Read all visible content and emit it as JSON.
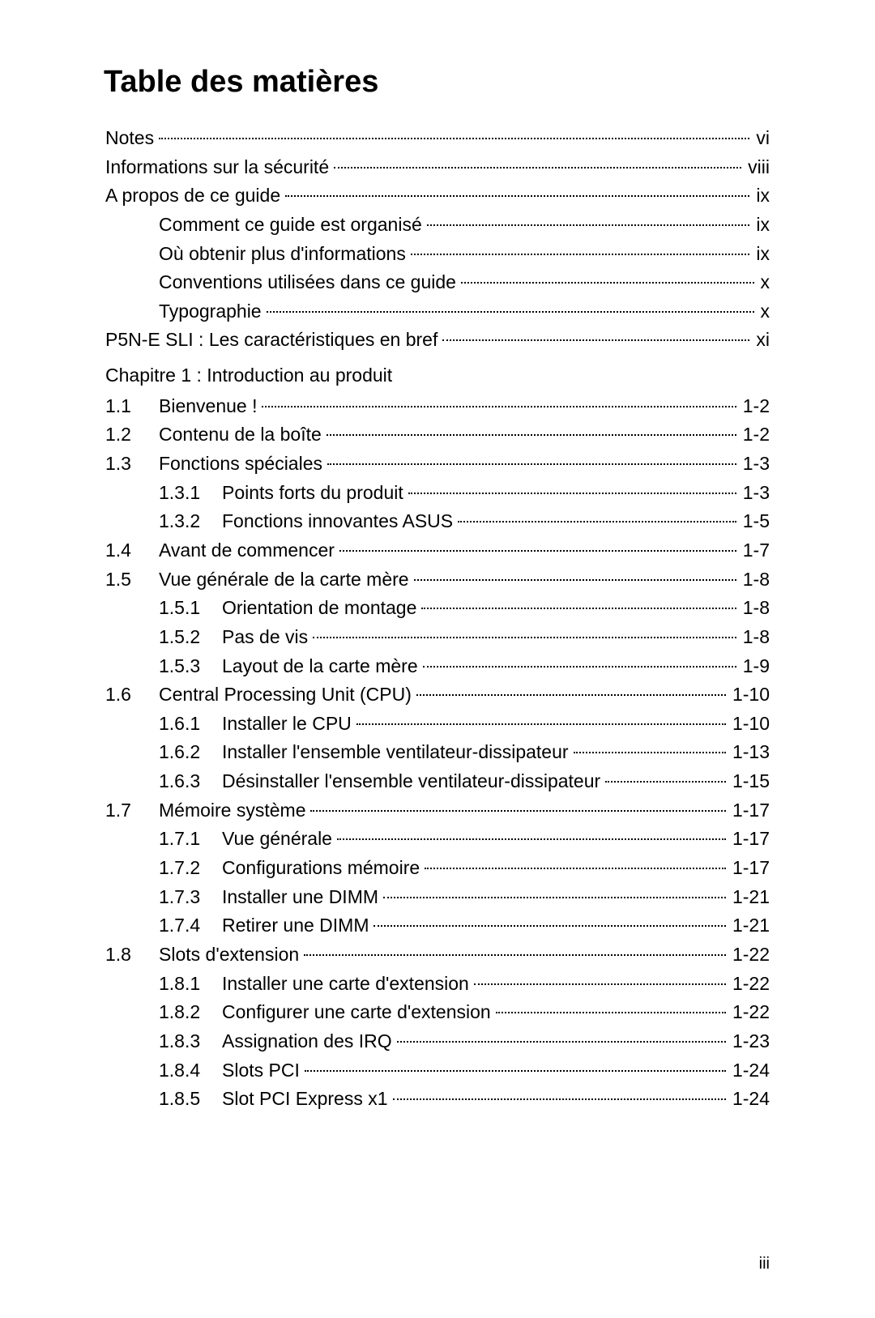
{
  "title": "Table des matières",
  "page_footer": "iii",
  "colors": {
    "text": "#000000",
    "background": "#ffffff",
    "leader": "#000000"
  },
  "typography": {
    "title_fontsize_pt": 28,
    "body_fontsize_pt": 17,
    "title_weight": "bold",
    "body_weight": "normal"
  },
  "front_matter": [
    {
      "label": "Notes",
      "page": "vi"
    },
    {
      "label": "Informations sur la sécurité",
      "page": "viii"
    },
    {
      "label": "A propos de ce guide",
      "page": "ix"
    }
  ],
  "front_sub": [
    {
      "label": "Comment ce guide est organisé",
      "page": "ix"
    },
    {
      "label": "Où obtenir plus d'informations",
      "page": "ix"
    },
    {
      "label": "Conventions utilisées dans ce guide",
      "page": "x"
    },
    {
      "label": "Typographie",
      "page": "x"
    }
  ],
  "front_tail": [
    {
      "label": "P5N-E SLI : Les caractéristiques en bref",
      "page": "xi"
    }
  ],
  "chapter": {
    "heading": "Chapitre 1 : Introduction au produit"
  },
  "sections": [
    {
      "num": "1.1",
      "label": "Bienvenue !",
      "page": "1-2"
    },
    {
      "num": "1.2",
      "label": "Contenu de la boîte",
      "page": "1-2"
    },
    {
      "num": "1.3",
      "label": "Fonctions spéciales",
      "page": "1-3",
      "subs": [
        {
          "sub": "1.3.1",
          "label": "Points forts du produit",
          "page": "1-3"
        },
        {
          "sub": "1.3.2",
          "label": "Fonctions innovantes ASUS",
          "page": "1-5"
        }
      ]
    },
    {
      "num": "1.4",
      "label": "Avant de commencer",
      "page": "1-7"
    },
    {
      "num": "1.5",
      "label": "Vue générale de la carte mère",
      "page": "1-8",
      "subs": [
        {
          "sub": "1.5.1",
          "label": "Orientation de montage",
          "page": "1-8"
        },
        {
          "sub": "1.5.2",
          "label": "Pas de vis",
          "page": "1-8"
        },
        {
          "sub": "1.5.3",
          "label": "Layout de la carte mère",
          "page": "1-9"
        }
      ]
    },
    {
      "num": "1.6",
      "label": "Central Processing Unit (CPU)",
      "page": "1-10",
      "subs": [
        {
          "sub": "1.6.1",
          "label": "Installer le CPU",
          "page": "1-10"
        },
        {
          "sub": "1.6.2",
          "label": "Installer l'ensemble ventilateur-dissipateur",
          "page": "1-13"
        },
        {
          "sub": "1.6.3",
          "label": "Désinstaller l'ensemble ventilateur-dissipateur",
          "page": "1-15"
        }
      ]
    },
    {
      "num": "1.7",
      "label": "Mémoire système",
      "page": "1-17",
      "subs": [
        {
          "sub": "1.7.1",
          "label": "Vue générale",
          "page": "1-17"
        },
        {
          "sub": "1.7.2",
          "label": "Configurations mémoire",
          "page": "1-17"
        },
        {
          "sub": "1.7.3",
          "label": "Installer une DIMM",
          "page": "1-21"
        },
        {
          "sub": "1.7.4",
          "label": "Retirer une DIMM",
          "page": "1-21"
        }
      ]
    },
    {
      "num": "1.8",
      "label": "Slots d'extension",
      "page": "1-22",
      "subs": [
        {
          "sub": "1.8.1",
          "label": "Installer une carte d'extension",
          "page": "1-22"
        },
        {
          "sub": "1.8.2",
          "label": "Configurer une carte d'extension",
          "page": "1-22"
        },
        {
          "sub": "1.8.3",
          "label": "Assignation des IRQ",
          "page": "1-23"
        },
        {
          "sub": "1.8.4",
          "label": "Slots PCI",
          "page": "1-24"
        },
        {
          "sub": "1.8.5",
          "label": "Slot PCI Express x1",
          "page": "1-24"
        }
      ]
    }
  ]
}
